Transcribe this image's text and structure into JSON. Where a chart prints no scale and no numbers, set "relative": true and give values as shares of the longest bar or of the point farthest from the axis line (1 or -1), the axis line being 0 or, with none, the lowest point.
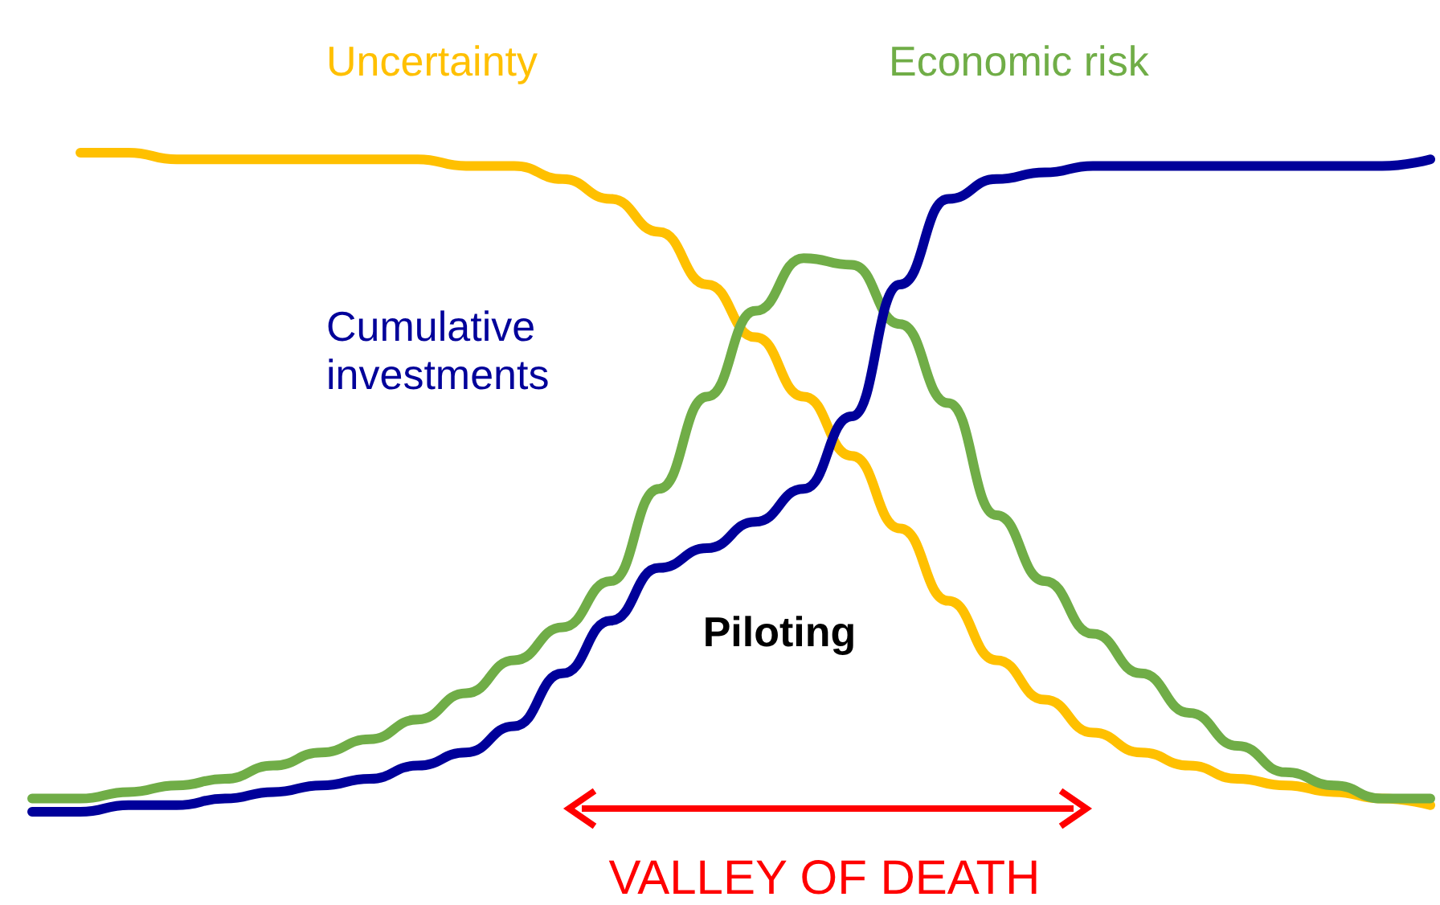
{
  "chart_data": {
    "type": "line",
    "relative": true,
    "legend": "top",
    "marker": "none",
    "line_style": "solid",
    "grid": false,
    "categories": [
      null,
      null,
      null,
      null,
      null,
      null,
      null,
      null,
      null,
      null,
      null,
      null,
      null,
      null,
      null,
      null,
      null,
      null,
      null,
      null,
      null,
      null,
      null,
      null,
      null,
      null,
      null,
      null,
      null,
      null
    ],
    "series": [
      {
        "name": "Uncertainty",
        "color": "#ffc000",
        "values": [
          null,
          1.0,
          1.0,
          0.99,
          0.99,
          0.99,
          0.99,
          0.99,
          0.99,
          0.98,
          0.98,
          0.96,
          0.93,
          0.88,
          0.8,
          0.72,
          0.63,
          0.54,
          0.43,
          0.32,
          0.23,
          0.17,
          0.12,
          0.09,
          0.07,
          0.05,
          0.04,
          0.03,
          0.02,
          0.01
        ]
      },
      {
        "name": "Economic risk",
        "color": "#70ad47",
        "values": [
          0.02,
          0.02,
          0.03,
          0.04,
          0.05,
          0.07,
          0.09,
          0.11,
          0.14,
          0.18,
          0.23,
          0.28,
          0.35,
          0.49,
          0.63,
          0.76,
          0.84,
          0.83,
          0.74,
          0.62,
          0.45,
          0.35,
          0.27,
          0.21,
          0.15,
          0.1,
          0.06,
          0.04,
          0.02,
          0.02
        ]
      },
      {
        "name": "Cumulative investments",
        "color": "#00009a",
        "values": [
          0,
          0,
          0.01,
          0.01,
          0.02,
          0.03,
          0.04,
          0.05,
          0.07,
          0.09,
          0.13,
          0.21,
          0.29,
          0.37,
          0.4,
          0.44,
          0.49,
          0.6,
          0.8,
          0.93,
          0.96,
          0.97,
          0.98,
          0.98,
          0.98,
          0.98,
          0.98,
          0.98,
          0.98,
          0.99
        ]
      }
    ],
    "annotations": [
      "Piloting",
      "VALLEY OF DEATH"
    ]
  }
}
